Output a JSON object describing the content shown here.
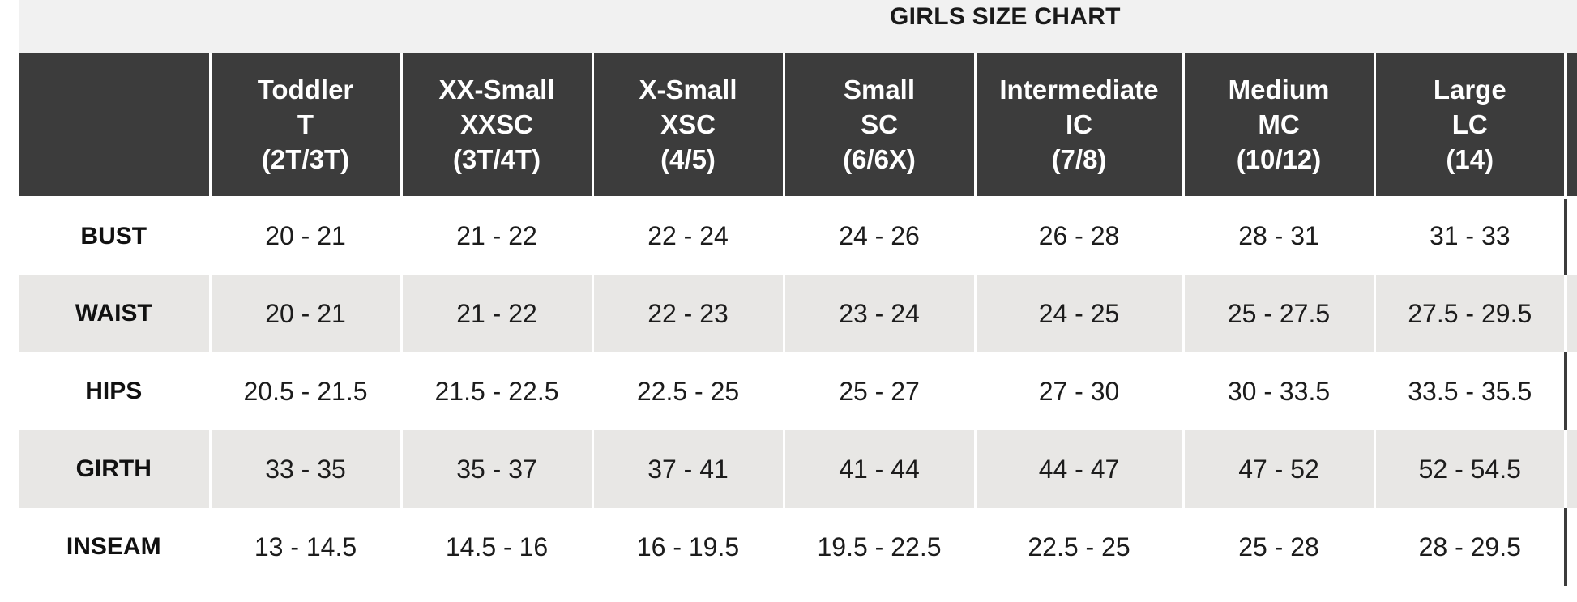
{
  "title": "GIRLS SIZE CHART",
  "columns": [
    {
      "lines": [
        "Toddler",
        "T",
        "(2T/3T)"
      ]
    },
    {
      "lines": [
        "XX-Small",
        "XXSC",
        "(3T/4T)"
      ]
    },
    {
      "lines": [
        "X-Small",
        "XSC",
        "(4/5)"
      ]
    },
    {
      "lines": [
        "Small",
        "SC",
        "(6/6X)"
      ]
    },
    {
      "lines": [
        "Intermediate",
        "IC",
        "(7/8)"
      ]
    },
    {
      "lines": [
        "Medium",
        "MC",
        "(10/12)"
      ]
    },
    {
      "lines": [
        "Large",
        "LC",
        "(14)"
      ]
    }
  ],
  "rows": [
    {
      "label": "BUST",
      "values": [
        "20 - 21",
        "21 - 22",
        "22 - 24",
        "24 - 26",
        "26 - 28",
        "28 - 31",
        "31 - 33"
      ]
    },
    {
      "label": "WAIST",
      "values": [
        "20 - 21",
        "21 - 22",
        "22 - 23",
        "23 - 24",
        "24 - 25",
        "25 - 27.5",
        "27.5 - 29.5"
      ]
    },
    {
      "label": "HIPS",
      "values": [
        "20.5 - 21.5",
        "21.5 - 22.5",
        "22.5 - 25",
        "25 - 27",
        "27 - 30",
        "30 - 33.5",
        "33.5 - 35.5"
      ]
    },
    {
      "label": "GIRTH",
      "values": [
        "33 - 35",
        "35 - 37",
        "37 - 41",
        "41 - 44",
        "44 - 47",
        "47 - 52",
        "52 - 54.5"
      ]
    },
    {
      "label": "INSEAM",
      "values": [
        "13 - 14.5",
        "14.5 - 16",
        "16 - 19.5",
        "19.5 - 22.5",
        "22.5 - 25",
        "25 - 28",
        "28 - 29.5"
      ]
    }
  ]
}
